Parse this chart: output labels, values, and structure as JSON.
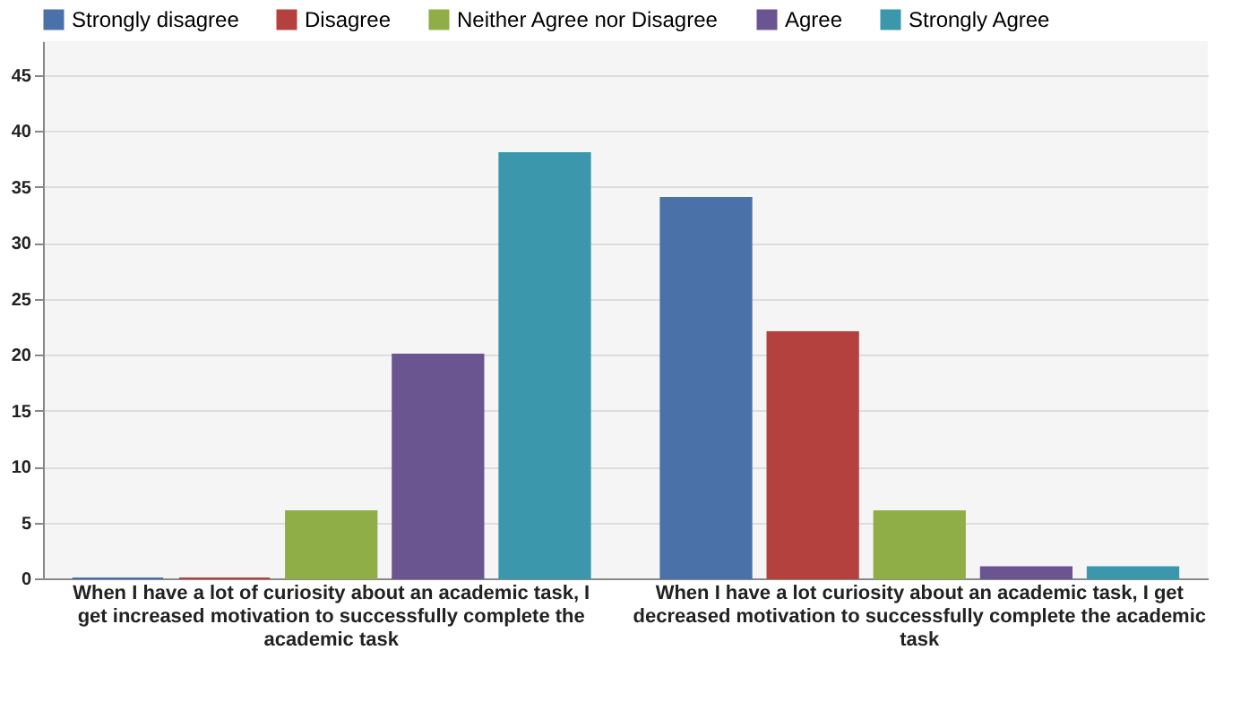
{
  "chart_data": {
    "type": "bar",
    "categories": [
      "When I have a lot of curiosity about an academic task, I get increased motivation to successfully complete the academic task",
      "When I have a lot curiosity about an academic task, I get decreased motivation to successfully complete the academic task"
    ],
    "series": [
      {
        "name": "Strongly disagree",
        "color": "#4a72a8",
        "values": [
          0,
          34
        ]
      },
      {
        "name": "Disagree",
        "color": "#b5413e",
        "values": [
          0,
          22
        ]
      },
      {
        "name": "Neither Agree nor Disagree",
        "color": "#8fae48",
        "values": [
          6,
          6
        ]
      },
      {
        "name": "Agree",
        "color": "#6b5590",
        "values": [
          20,
          1
        ]
      },
      {
        "name": "Strongly Agree",
        "color": "#3a97ac",
        "values": [
          38,
          1
        ]
      }
    ],
    "ylim": [
      0,
      48
    ],
    "yticks": [
      0,
      5,
      10,
      15,
      20,
      25,
      30,
      35,
      40,
      45
    ],
    "grid": "y",
    "legend": "top left"
  }
}
